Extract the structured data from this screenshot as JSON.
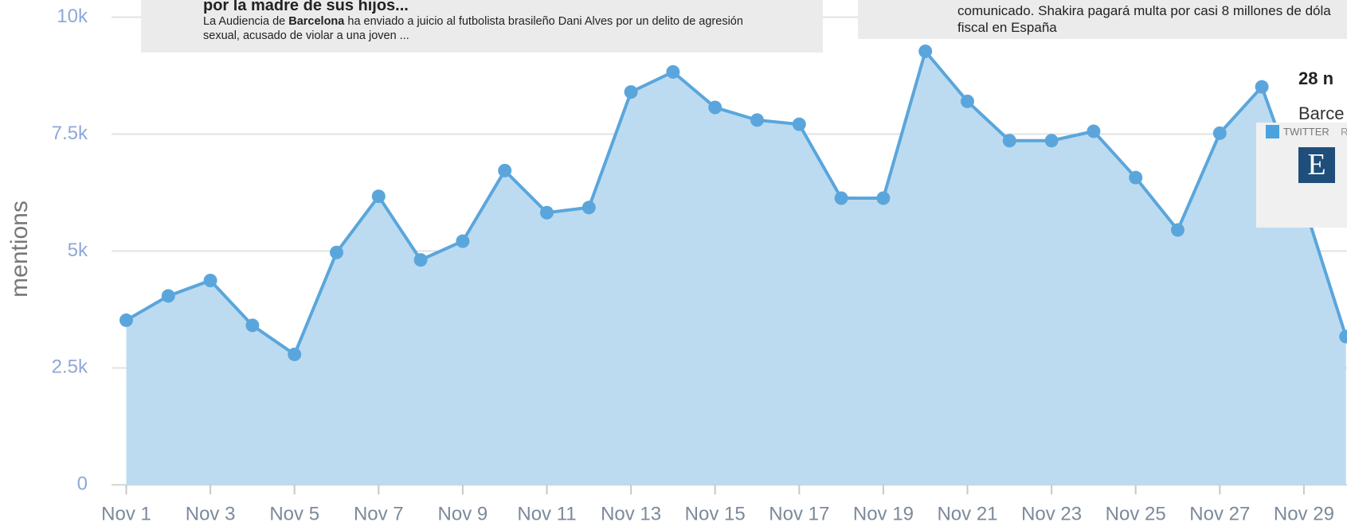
{
  "chart_data": {
    "type": "area",
    "y_label": "mentions",
    "categories": [
      "Nov 1",
      null,
      "Nov 3",
      null,
      "Nov 5",
      null,
      "Nov 7",
      null,
      "Nov 9",
      null,
      "Nov 11",
      null,
      "Nov 13",
      null,
      "Nov 15",
      null,
      "Nov 17",
      null,
      "Nov 19",
      null,
      "Nov 21",
      null,
      "Nov 23",
      null,
      "Nov 25",
      null,
      "Nov 27",
      null,
      "Nov 29",
      null
    ],
    "values": [
      3520,
      4040,
      4370,
      3410,
      2790,
      4970,
      6170,
      4810,
      5210,
      6720,
      5820,
      5930,
      8400,
      8830,
      8070,
      7800,
      7710,
      6130,
      6130,
      9270,
      8200,
      7360,
      7360,
      7560,
      6570,
      5450,
      7520,
      8510,
      6000,
      3170
    ],
    "color": "#5aa6dc",
    "fill": "#b9d9ef",
    "ylim": [
      0,
      10000
    ],
    "yticks": [
      0,
      {
        "value": 2500,
        "label": "2.5k"
      },
      {
        "value": 5000,
        "label": "5k"
      },
      {
        "value": 7500,
        "label": "7.5k"
      },
      {
        "value": 10000,
        "label": "10k"
      }
    ],
    "grid": true
  },
  "cards": [
    {
      "title": "por la madre de sus hijos...",
      "body": [
        "La Audiencia de ",
        "Barcelona",
        " ha enviado a juicio al futbolista brasileño Dani Alves por un delito de agresión sexual, acusado de violar a una joven ..."
      ]
    },
    {
      "lines": [
        "comunicado. Shakira pagará multa por casi 8 millones de dóla",
        "fiscal en España"
      ]
    }
  ],
  "tooltip": {
    "date": "28 n",
    "text": "Barce",
    "source": "TWITTER",
    "extra": "R",
    "logo": "E"
  }
}
